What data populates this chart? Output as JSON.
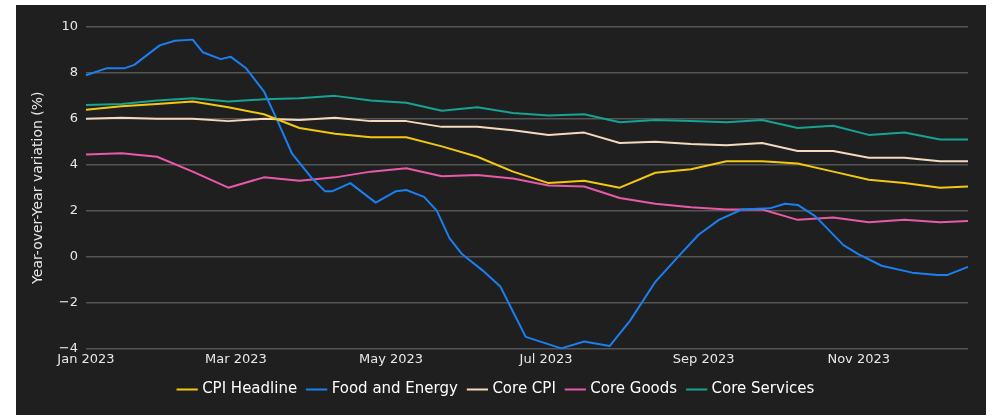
{
  "chart_data": {
    "type": "line",
    "ylabel": "Year-over-Year variation (%)",
    "xlim": [
      "2023-01-01",
      "2023-12-14"
    ],
    "xticks": [
      {
        "value": "2023-01-01",
        "label": "Jan 2023"
      },
      {
        "value": "2023-03-01",
        "label": "Mar 2023"
      },
      {
        "value": "2023-05-01",
        "label": "May 2023"
      },
      {
        "value": "2023-07-01",
        "label": "Jul 2023"
      },
      {
        "value": "2023-09-01",
        "label": "Sep 2023"
      },
      {
        "value": "2023-11-01",
        "label": "Nov 2023"
      }
    ],
    "ylim": [
      -4,
      10
    ],
    "yticks": [
      -4,
      -2,
      0,
      2,
      4,
      6,
      8,
      10
    ],
    "grid": "y",
    "legend": "bottom",
    "marker": "none",
    "line_style": "solid",
    "x": [
      "2023-01-01",
      "2023-01-15",
      "2023-01-29",
      "2023-02-12",
      "2023-02-26",
      "2023-03-12",
      "2023-03-26",
      "2023-04-09",
      "2023-04-23",
      "2023-05-07",
      "2023-05-21",
      "2023-06-04",
      "2023-06-18",
      "2023-07-02",
      "2023-07-16",
      "2023-07-30",
      "2023-08-13",
      "2023-08-27",
      "2023-09-10",
      "2023-09-24",
      "2023-10-08",
      "2023-10-22",
      "2023-11-05",
      "2023-11-19",
      "2023-12-03",
      "2023-12-14"
    ],
    "series": [
      {
        "name": "CPI Headline",
        "color": "#f2c811",
        "values": [
          6.4,
          6.55,
          6.65,
          6.75,
          6.5,
          6.2,
          5.6,
          5.35,
          5.2,
          5.2,
          4.8,
          4.35,
          3.7,
          3.2,
          3.3,
          3.0,
          3.65,
          3.8,
          4.15,
          4.15,
          4.05,
          3.7,
          3.35,
          3.2,
          3.0,
          3.05
        ]
      },
      {
        "name": "Food and Energy",
        "color": "#1a7ff0",
        "x": [
          "2023-01-01",
          "2023-01-09",
          "2023-01-16",
          "2023-01-20",
          "2023-01-30",
          "2023-02-05",
          "2023-02-12",
          "2023-02-16",
          "2023-02-23",
          "2023-02-27",
          "2023-03-05",
          "2023-03-12",
          "2023-03-17",
          "2023-03-23",
          "2023-03-31",
          "2023-04-05",
          "2023-04-08",
          "2023-04-15",
          "2023-04-25",
          "2023-05-03",
          "2023-05-07",
          "2023-05-14",
          "2023-05-19",
          "2023-05-24",
          "2023-05-29",
          "2023-06-06",
          "2023-06-13",
          "2023-06-23",
          "2023-07-07",
          "2023-07-16",
          "2023-07-26",
          "2023-08-03",
          "2023-08-13",
          "2023-08-22",
          "2023-08-30",
          "2023-09-07",
          "2023-09-16",
          "2023-09-27",
          "2023-10-03",
          "2023-10-08",
          "2023-10-15",
          "2023-10-26",
          "2023-11-01",
          "2023-11-10",
          "2023-11-22",
          "2023-12-02",
          "2023-12-06",
          "2023-12-14"
        ],
        "values": [
          7.9,
          8.2,
          8.2,
          8.35,
          9.2,
          9.4,
          9.45,
          8.9,
          8.6,
          8.7,
          8.2,
          7.2,
          6.0,
          4.5,
          3.4,
          2.85,
          2.85,
          3.2,
          2.35,
          2.85,
          2.9,
          2.6,
          2.0,
          0.8,
          0.1,
          -0.6,
          -1.3,
          -3.5,
          -4.0,
          -3.7,
          -3.9,
          -2.8,
          -1.1,
          0,
          0.95,
          1.6,
          2.05,
          2.1,
          2.3,
          2.25,
          1.75,
          0.5,
          0.1,
          -0.4,
          -0.7,
          -0.8,
          -0.8,
          -0.45
        ]
      },
      {
        "name": "Core CPI",
        "color": "#f5d9bf",
        "values": [
          6.0,
          6.05,
          6.0,
          6.0,
          5.9,
          6.0,
          5.95,
          6.05,
          5.9,
          5.9,
          5.65,
          5.65,
          5.5,
          5.3,
          5.4,
          4.95,
          5.0,
          4.9,
          4.85,
          4.95,
          4.6,
          4.6,
          4.3,
          4.3,
          4.15,
          4.15
        ]
      },
      {
        "name": "Core Goods",
        "color": "#e85aa8",
        "values": [
          4.45,
          4.5,
          4.35,
          3.7,
          3.0,
          3.45,
          3.3,
          3.45,
          3.7,
          3.85,
          3.5,
          3.55,
          3.4,
          3.1,
          3.05,
          2.55,
          2.3,
          2.15,
          2.05,
          2.05,
          1.6,
          1.7,
          1.5,
          1.6,
          1.5,
          1.55
        ]
      },
      {
        "name": "Core Services",
        "color": "#16a394",
        "values": [
          6.6,
          6.65,
          6.8,
          6.9,
          6.75,
          6.85,
          6.9,
          7.0,
          6.8,
          6.7,
          6.35,
          6.5,
          6.25,
          6.15,
          6.2,
          5.85,
          5.95,
          5.9,
          5.85,
          5.95,
          5.6,
          5.7,
          5.3,
          5.4,
          5.1,
          5.1
        ]
      }
    ]
  }
}
